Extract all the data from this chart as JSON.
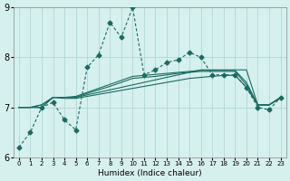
{
  "xlabel": "Humidex (Indice chaleur)",
  "ylabel": "",
  "xlim": [
    -0.5,
    23.5
  ],
  "ylim": [
    6,
    9
  ],
  "yticks": [
    6,
    7,
    8,
    9
  ],
  "xticks": [
    0,
    1,
    2,
    3,
    4,
    5,
    6,
    7,
    8,
    9,
    10,
    11,
    12,
    13,
    14,
    15,
    16,
    17,
    18,
    19,
    20,
    21,
    22,
    23
  ],
  "bg_color": "#d6f0ee",
  "grid_color": "#b0d8d4",
  "line_color": "#1a6b60",
  "series": {
    "dotted_spiky": [
      6.2,
      6.5,
      7.0,
      7.1,
      6.75,
      6.55,
      7.8,
      8.05,
      8.7,
      8.4,
      9.0,
      7.65,
      7.75,
      7.9,
      7.95,
      8.1,
      8.0,
      7.65,
      7.65,
      7.65,
      7.4,
      7.0,
      6.95,
      7.2
    ],
    "linear1": [
      7.0,
      7.0,
      7.0,
      7.2,
      7.2,
      7.2,
      7.25,
      7.3,
      7.35,
      7.4,
      7.45,
      7.5,
      7.55,
      7.6,
      7.65,
      7.7,
      7.75,
      7.75,
      7.75,
      7.75,
      7.75,
      7.05,
      7.05,
      7.2
    ],
    "linear2": [
      7.0,
      7.0,
      7.05,
      7.2,
      7.2,
      7.2,
      7.28,
      7.35,
      7.42,
      7.5,
      7.58,
      7.6,
      7.62,
      7.65,
      7.68,
      7.7,
      7.72,
      7.72,
      7.72,
      7.72,
      7.45,
      7.05,
      7.05,
      7.2
    ],
    "linear3": [
      7.0,
      7.0,
      7.05,
      7.2,
      7.2,
      7.22,
      7.3,
      7.38,
      7.46,
      7.54,
      7.62,
      7.64,
      7.66,
      7.68,
      7.7,
      7.72,
      7.74,
      7.74,
      7.74,
      7.74,
      7.5,
      7.05,
      7.05,
      7.2
    ],
    "linear4": [
      7.0,
      7.0,
      7.0,
      7.2,
      7.18,
      7.18,
      7.22,
      7.26,
      7.3,
      7.34,
      7.38,
      7.42,
      7.46,
      7.5,
      7.54,
      7.58,
      7.6,
      7.62,
      7.64,
      7.64,
      7.4,
      7.05,
      7.05,
      7.18
    ]
  }
}
